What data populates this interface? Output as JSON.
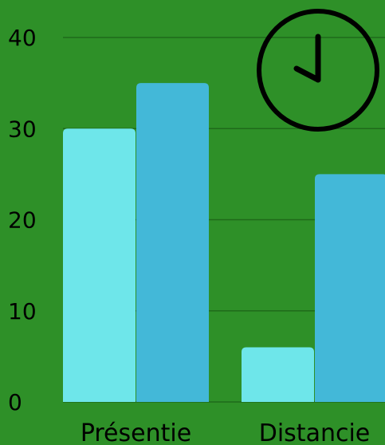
{
  "chart_data": {
    "type": "bar",
    "categories": [
      "Présentie",
      "Distancie"
    ],
    "series": [
      {
        "values": [
          30,
          6
        ],
        "color": "#6ee6ea"
      },
      {
        "values": [
          35,
          25
        ],
        "color": "#43b8d8"
      }
    ],
    "yticks": [
      "0",
      "10",
      "20",
      "30",
      "40"
    ],
    "ylim": [
      0,
      40
    ],
    "grid": true,
    "legend": "none"
  },
  "colors": {
    "background": "#2e9028",
    "gridline": "#1f6a1a",
    "text": "#000000"
  },
  "icon": {
    "name": "clock-icon",
    "stroke": "#000000"
  }
}
